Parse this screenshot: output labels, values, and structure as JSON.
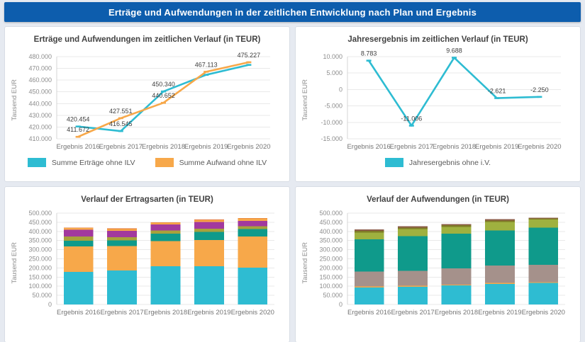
{
  "header": {
    "title": "Erträge und Aufwendungen in der zeitlichen Entwicklung nach Plan und Ergebnis"
  },
  "colors": {
    "header_bg": "#0d5dad",
    "header_text": "#ffffff",
    "page_bg": "#e6eaf1",
    "card_border": "#d8dde5",
    "grid_line": "#e9e9e9",
    "axis_line": "#d4d4d4",
    "tick_text": "#8d8d8d",
    "category_text": "#757575",
    "data_label_text": "#3d3d3d",
    "cyan": "#2ebcd2",
    "orange": "#f7a84a",
    "teal": "#0f9a8b",
    "olive": "#a8a23b",
    "purple": "#a2399e",
    "dark_orange": "#e2702f",
    "taupe": "#a5918b",
    "yellow_green": "#9fb13f",
    "dark_olive": "#7f7c27",
    "brown": "#8c5c48"
  },
  "chart_data": [
    {
      "id": "ertraege-aufwendungen-line",
      "type": "line",
      "title": "Erträge und Aufwendungen im zeitlichen Verlauf (in TEUR)",
      "ylabel": "Tausend EUR",
      "categories": [
        "Ergebnis 2016",
        "Ergebnis 2017",
        "Ergebnis 2018",
        "Ergebnis 2019",
        "Ergebnis 2020"
      ],
      "ylim": [
        410000,
        480000
      ],
      "ytick_step": 10000,
      "grid": true,
      "legend": true,
      "legend_position": "bottom",
      "series": [
        {
          "name": "Summe Erträge ohne ILV",
          "color": "#2ebcd2",
          "values": [
            420454,
            416545,
            450340,
            464492,
            472977
          ],
          "labels": [
            "420.454",
            "416.545",
            "450.340",
            null,
            null
          ]
        },
        {
          "name": "Summe Aufwand ohne ILV",
          "color": "#f7a84a",
          "values": [
            411672,
            427551,
            440652,
            467113,
            475227
          ],
          "labels": [
            "411.672",
            "427.551",
            "440.652",
            "467.113",
            "475.227"
          ]
        }
      ]
    },
    {
      "id": "jahresergebnis-line",
      "type": "line",
      "title": "Jahresergebnis im zeitlichen Verlauf (in TEUR)",
      "ylabel": "Tausend EUR",
      "categories": [
        "Ergebnis 2016",
        "Ergebnis 2017",
        "Ergebnis 2018",
        "Ergebnis 2019",
        "Ergebnis 2020"
      ],
      "ylim": [
        -15000,
        10000
      ],
      "ytick_step": 5000,
      "grid": true,
      "legend": true,
      "legend_position": "bottom",
      "series": [
        {
          "name": "Jahresergebnis ohne i.V.",
          "color": "#2ebcd2",
          "values": [
            8783,
            -11006,
            9688,
            -2621,
            -2250
          ],
          "labels": [
            "8.783",
            "-11.006",
            "9.688",
            "-2.621",
            "-2.250"
          ]
        }
      ]
    },
    {
      "id": "ertragsarten-stacked-bar",
      "type": "stacked-bar",
      "title": "Verlauf der Ertragsarten (in TEUR)",
      "ylabel": "Tausend EUR",
      "categories": [
        "Ergebnis 2016",
        "Ergebnis 2017",
        "Ergebnis 2018",
        "Ergebnis 2019",
        "Ergebnis 2020"
      ],
      "ylim": [
        0,
        500000
      ],
      "ytick_step": 50000,
      "grid": true,
      "legend": false,
      "series": [
        {
          "name": "segment-1",
          "color": "#2ebcd2",
          "values": [
            178000,
            186000,
            210000,
            209000,
            201000
          ]
        },
        {
          "name": "segment-2",
          "color": "#f7a84a",
          "values": [
            140000,
            134000,
            136000,
            143000,
            171000
          ]
        },
        {
          "name": "segment-3",
          "color": "#0f9a8b",
          "values": [
            31000,
            30000,
            42000,
            46000,
            40000
          ]
        },
        {
          "name": "segment-4",
          "color": "#a8a23b",
          "values": [
            24000,
            18000,
            17000,
            17000,
            16000
          ]
        },
        {
          "name": "segment-5",
          "color": "#a2399e",
          "values": [
            35000,
            36000,
            33000,
            37000,
            30000
          ]
        },
        {
          "name": "segment-6",
          "color": "#f7a84a",
          "values": [
            10000,
            9000,
            10000,
            11000,
            13000
          ]
        },
        {
          "name": "segment-7",
          "color": "#e2702f",
          "values": [
            2454,
            3545,
            2340,
            1492,
            1977
          ]
        }
      ],
      "totals": [
        420454,
        416545,
        450340,
        464492,
        472977
      ]
    },
    {
      "id": "aufwendungen-stacked-bar",
      "type": "stacked-bar",
      "title": "Verlauf der Aufwendungen (in TEUR)",
      "ylabel": "Tausend EUR",
      "categories": [
        "Ergebnis 2016",
        "Ergebnis 2017",
        "Ergebnis 2018",
        "Ergebnis 2019",
        "Ergebnis 2020"
      ],
      "ylim": [
        0,
        500000
      ],
      "ytick_step": 50000,
      "grid": true,
      "legend": false,
      "series": [
        {
          "name": "segment-1",
          "color": "#2ebcd2",
          "values": [
            93000,
            97000,
            104000,
            113000,
            118000
          ]
        },
        {
          "name": "segment-2",
          "color": "#f7a84a",
          "values": [
            6000,
            6000,
            5000,
            6000,
            5000
          ]
        },
        {
          "name": "segment-3",
          "color": "#a5918b",
          "values": [
            81000,
            82000,
            88000,
            94000,
            95000
          ]
        },
        {
          "name": "segment-4",
          "color": "#0f9a8b",
          "values": [
            176000,
            190000,
            190000,
            192000,
            202000
          ]
        },
        {
          "name": "segment-5",
          "color": "#9fb13f",
          "values": [
            38000,
            37000,
            38000,
            47000,
            45000
          ]
        },
        {
          "name": "segment-6",
          "color": "#7f7c27",
          "values": [
            10000,
            9000,
            9000,
            8000,
            6000
          ]
        },
        {
          "name": "segment-7",
          "color": "#8c5c48",
          "values": [
            7672,
            6551,
            6652,
            7113,
            4227
          ]
        }
      ],
      "totals": [
        411672,
        427551,
        440652,
        467113,
        475227
      ]
    }
  ]
}
